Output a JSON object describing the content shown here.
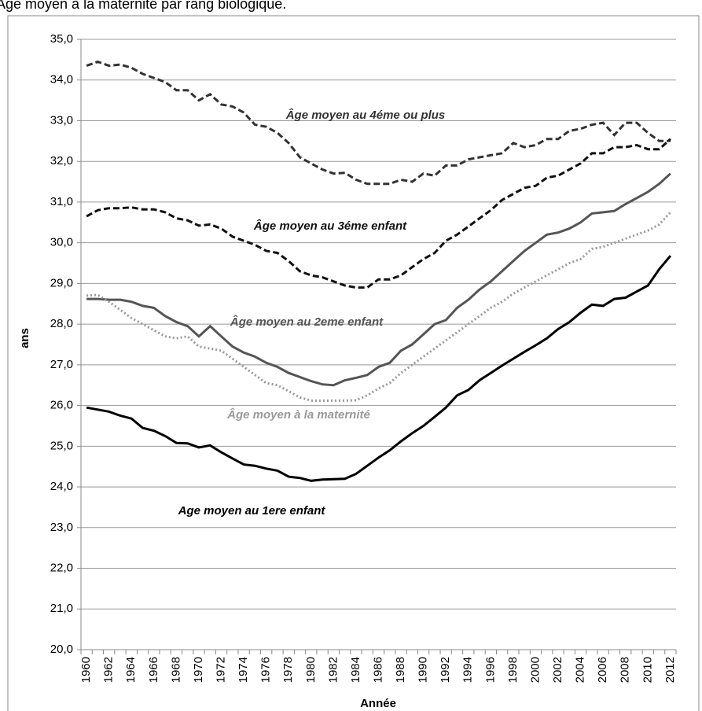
{
  "chart_data": {
    "type": "line",
    "title": "Âge moyen à la maternité par rang biologique.",
    "x_label": "Année",
    "y_label": "ans",
    "categories": [
      "1960",
      null,
      "1962",
      null,
      "1964",
      null,
      "1966",
      null,
      "1968",
      null,
      "1970",
      null,
      "1972",
      null,
      "1974",
      null,
      "1976",
      null,
      "1978",
      null,
      "1980",
      null,
      "1982",
      null,
      "1984",
      null,
      "1986",
      null,
      "1988",
      null,
      "1990",
      null,
      "1992",
      null,
      "1994",
      null,
      "1996",
      null,
      "1998",
      null,
      "2000",
      null,
      "2002",
      null,
      "2004",
      null,
      "2006",
      null,
      "2008",
      null,
      "2010",
      null,
      "2012"
    ],
    "ylim": [
      20,
      35
    ],
    "yticks": [
      {
        "value": 20,
        "label": "20,0"
      },
      {
        "value": 21,
        "label": "21,0"
      },
      {
        "value": 22,
        "label": "22,0"
      },
      {
        "value": 23,
        "label": "23,0"
      },
      {
        "value": 24,
        "label": "24,0"
      },
      {
        "value": 25,
        "label": "25,0"
      },
      {
        "value": 26,
        "label": "26,0"
      },
      {
        "value": 27,
        "label": "27,0"
      },
      {
        "value": 28,
        "label": "28,0"
      },
      {
        "value": 29,
        "label": "29,0"
      },
      {
        "value": 30,
        "label": "30,0"
      },
      {
        "value": 31,
        "label": "31,0"
      },
      {
        "value": 32,
        "label": "32,0"
      },
      {
        "value": 33,
        "label": "33,0"
      },
      {
        "value": 34,
        "label": "34,0"
      },
      {
        "value": 35,
        "label": "35,0"
      }
    ],
    "grid": true,
    "series": [
      {
        "name": "Âge moyen au 4éme ou plus",
        "color": "#333333",
        "dash": "dashed",
        "values": [
          34.35,
          34.45,
          34.35,
          34.38,
          34.3,
          34.15,
          34.05,
          33.95,
          33.75,
          33.75,
          33.5,
          33.65,
          33.4,
          33.35,
          33.2,
          32.9,
          32.85,
          32.7,
          32.45,
          32.1,
          31.95,
          31.8,
          31.7,
          31.72,
          31.55,
          31.45,
          31.45,
          31.45,
          31.55,
          31.5,
          31.7,
          31.65,
          31.9,
          31.9,
          32.05,
          32.1,
          32.15,
          32.2,
          32.45,
          32.35,
          32.4,
          32.55,
          32.55,
          32.75,
          32.8,
          32.9,
          32.95,
          32.65,
          32.95,
          32.95,
          32.7,
          32.5,
          32.5
        ]
      },
      {
        "name": "Âge moyen au 3éme enfant",
        "color": "#111111",
        "dash": "dashed",
        "values": [
          30.65,
          30.8,
          30.85,
          30.85,
          30.87,
          30.82,
          30.82,
          30.75,
          30.6,
          30.55,
          30.42,
          30.45,
          30.35,
          30.15,
          30.05,
          29.95,
          29.8,
          29.75,
          29.55,
          29.3,
          29.2,
          29.15,
          29.05,
          28.95,
          28.9,
          28.9,
          29.1,
          29.1,
          29.2,
          29.4,
          29.6,
          29.75,
          30.05,
          30.2,
          30.4,
          30.6,
          30.8,
          31.05,
          31.2,
          31.35,
          31.4,
          31.6,
          31.65,
          31.8,
          31.95,
          32.2,
          32.2,
          32.35,
          32.35,
          32.4,
          32.3,
          32.3,
          32.55
        ]
      },
      {
        "name": "Âge moyen au 2eme enfant",
        "color": "#555555",
        "dash": "solid",
        "values": [
          28.62,
          28.62,
          28.6,
          28.6,
          28.55,
          28.45,
          28.4,
          28.2,
          28.05,
          27.95,
          27.7,
          27.95,
          27.7,
          27.45,
          27.3,
          27.2,
          27.05,
          26.95,
          26.8,
          26.7,
          26.6,
          26.52,
          26.5,
          26.62,
          26.68,
          26.75,
          26.95,
          27.05,
          27.35,
          27.5,
          27.75,
          28.0,
          28.1,
          28.4,
          28.6,
          28.85,
          29.05,
          29.3,
          29.55,
          29.8,
          30.0,
          30.2,
          30.25,
          30.35,
          30.5,
          30.72,
          30.75,
          30.78,
          30.95,
          31.1,
          31.25,
          31.45,
          31.7
        ]
      },
      {
        "name": "Âge moyen à la maternité",
        "color": "#999999",
        "dash": "dotted",
        "values": [
          28.7,
          28.72,
          28.55,
          28.35,
          28.15,
          28.0,
          27.85,
          27.7,
          27.65,
          27.7,
          27.45,
          27.4,
          27.35,
          27.15,
          26.95,
          26.75,
          26.55,
          26.5,
          26.35,
          26.2,
          26.12,
          26.12,
          26.12,
          26.12,
          26.13,
          26.25,
          26.42,
          26.55,
          26.8,
          27.0,
          27.2,
          27.4,
          27.6,
          27.8,
          28.0,
          28.2,
          28.4,
          28.55,
          28.75,
          28.9,
          29.05,
          29.2,
          29.35,
          29.5,
          29.6,
          29.85,
          29.9,
          30.0,
          30.1,
          30.2,
          30.3,
          30.45,
          30.75
        ]
      },
      {
        "name": "Age moyen au 1ere enfant",
        "color": "#000000",
        "dash": "solid",
        "values": [
          25.95,
          25.9,
          25.85,
          25.75,
          25.68,
          25.45,
          25.38,
          25.25,
          25.08,
          25.07,
          24.97,
          25.02,
          24.85,
          24.7,
          24.55,
          24.52,
          24.45,
          24.4,
          24.25,
          24.22,
          24.15,
          24.18,
          24.19,
          24.2,
          24.32,
          24.52,
          24.72,
          24.9,
          25.12,
          25.32,
          25.5,
          25.72,
          25.95,
          26.25,
          26.38,
          26.62,
          26.8,
          26.98,
          27.15,
          27.32,
          27.48,
          27.65,
          27.88,
          28.05,
          28.28,
          28.48,
          28.45,
          28.62,
          28.65,
          28.8,
          28.95,
          29.35,
          29.68
        ]
      }
    ]
  }
}
